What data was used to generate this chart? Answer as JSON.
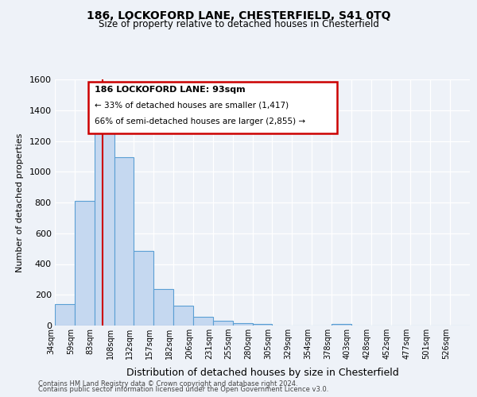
{
  "title1": "186, LOCKOFORD LANE, CHESTERFIELD, S41 0TQ",
  "title2": "Size of property relative to detached houses in Chesterfield",
  "xlabel": "Distribution of detached houses by size in Chesterfield",
  "ylabel": "Number of detached properties",
  "footnote1": "Contains HM Land Registry data © Crown copyright and database right 2024.",
  "footnote2": "Contains public sector information licensed under the Open Government Licence v3.0.",
  "categories": [
    "34sqm",
    "59sqm",
    "83sqm",
    "108sqm",
    "132sqm",
    "157sqm",
    "182sqm",
    "206sqm",
    "231sqm",
    "255sqm",
    "280sqm",
    "305sqm",
    "329sqm",
    "354sqm",
    "378sqm",
    "403sqm",
    "428sqm",
    "452sqm",
    "477sqm",
    "501sqm",
    "526sqm"
  ],
  "values": [
    140,
    810,
    1290,
    1095,
    485,
    235,
    130,
    55,
    30,
    15,
    10,
    0,
    0,
    0,
    10,
    0,
    0,
    0,
    0,
    0,
    0
  ],
  "bar_color": "#c5d8f0",
  "bar_edge_color": "#5a9fd4",
  "ylim": [
    0,
    1600
  ],
  "yticks": [
    0,
    200,
    400,
    600,
    800,
    1000,
    1200,
    1400,
    1600
  ],
  "marker_label": "186 LOCKOFORD LANE: 93sqm",
  "annotation_line1": "← 33% of detached houses are smaller (1,417)",
  "annotation_line2": "66% of semi-detached houses are larger (2,855) →",
  "box_color": "#cc0000",
  "background_color": "#eef2f8",
  "grid_color": "#ffffff",
  "vline_color": "#cc0000",
  "vline_x": 2.4
}
